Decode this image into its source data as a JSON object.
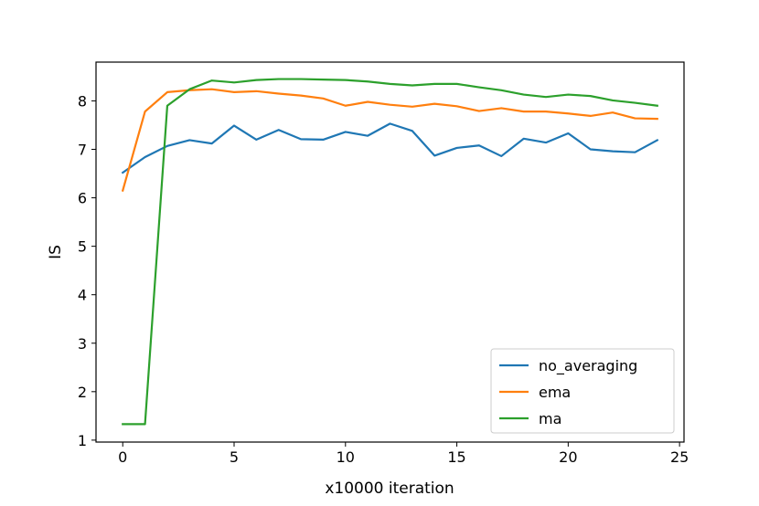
{
  "chart_data": {
    "type": "line",
    "xlabel": "x10000 iteration",
    "ylabel": "IS",
    "xlim": [
      -1.2,
      25.2
    ],
    "ylim": [
      0.96,
      8.8
    ],
    "xticks": [
      0,
      5,
      10,
      15,
      20,
      25
    ],
    "yticks": [
      1,
      2,
      3,
      4,
      5,
      6,
      7,
      8
    ],
    "grid": false,
    "legend_position": "lower-right",
    "x": [
      0,
      1,
      2,
      3,
      4,
      5,
      6,
      7,
      8,
      9,
      10,
      11,
      12,
      13,
      14,
      15,
      16,
      17,
      18,
      19,
      20,
      21,
      22,
      23,
      24
    ],
    "series": [
      {
        "name": "no_averaging",
        "color": "#1f77b4",
        "values": [
          6.52,
          6.84,
          7.07,
          7.19,
          7.12,
          7.49,
          7.2,
          7.4,
          7.21,
          7.2,
          7.36,
          7.28,
          7.53,
          7.38,
          6.87,
          7.03,
          7.08,
          6.86,
          7.22,
          7.14,
          7.33,
          7.0,
          6.96,
          6.94,
          7.19
        ]
      },
      {
        "name": "ema",
        "color": "#ff7f0e",
        "values": [
          6.15,
          7.78,
          8.18,
          8.22,
          8.24,
          8.18,
          8.2,
          8.15,
          8.11,
          8.05,
          7.9,
          7.98,
          7.92,
          7.88,
          7.94,
          7.89,
          7.79,
          7.85,
          7.78,
          7.78,
          7.74,
          7.69,
          7.76,
          7.64,
          7.63
        ]
      },
      {
        "name": "ma",
        "color": "#2ca02c",
        "values": [
          1.33,
          1.33,
          7.9,
          8.24,
          8.42,
          8.38,
          8.43,
          8.45,
          8.45,
          8.44,
          8.43,
          8.4,
          8.35,
          8.32,
          8.35,
          8.35,
          8.28,
          8.22,
          8.13,
          8.08,
          8.13,
          8.1,
          8.01,
          7.96,
          7.9
        ]
      }
    ]
  }
}
